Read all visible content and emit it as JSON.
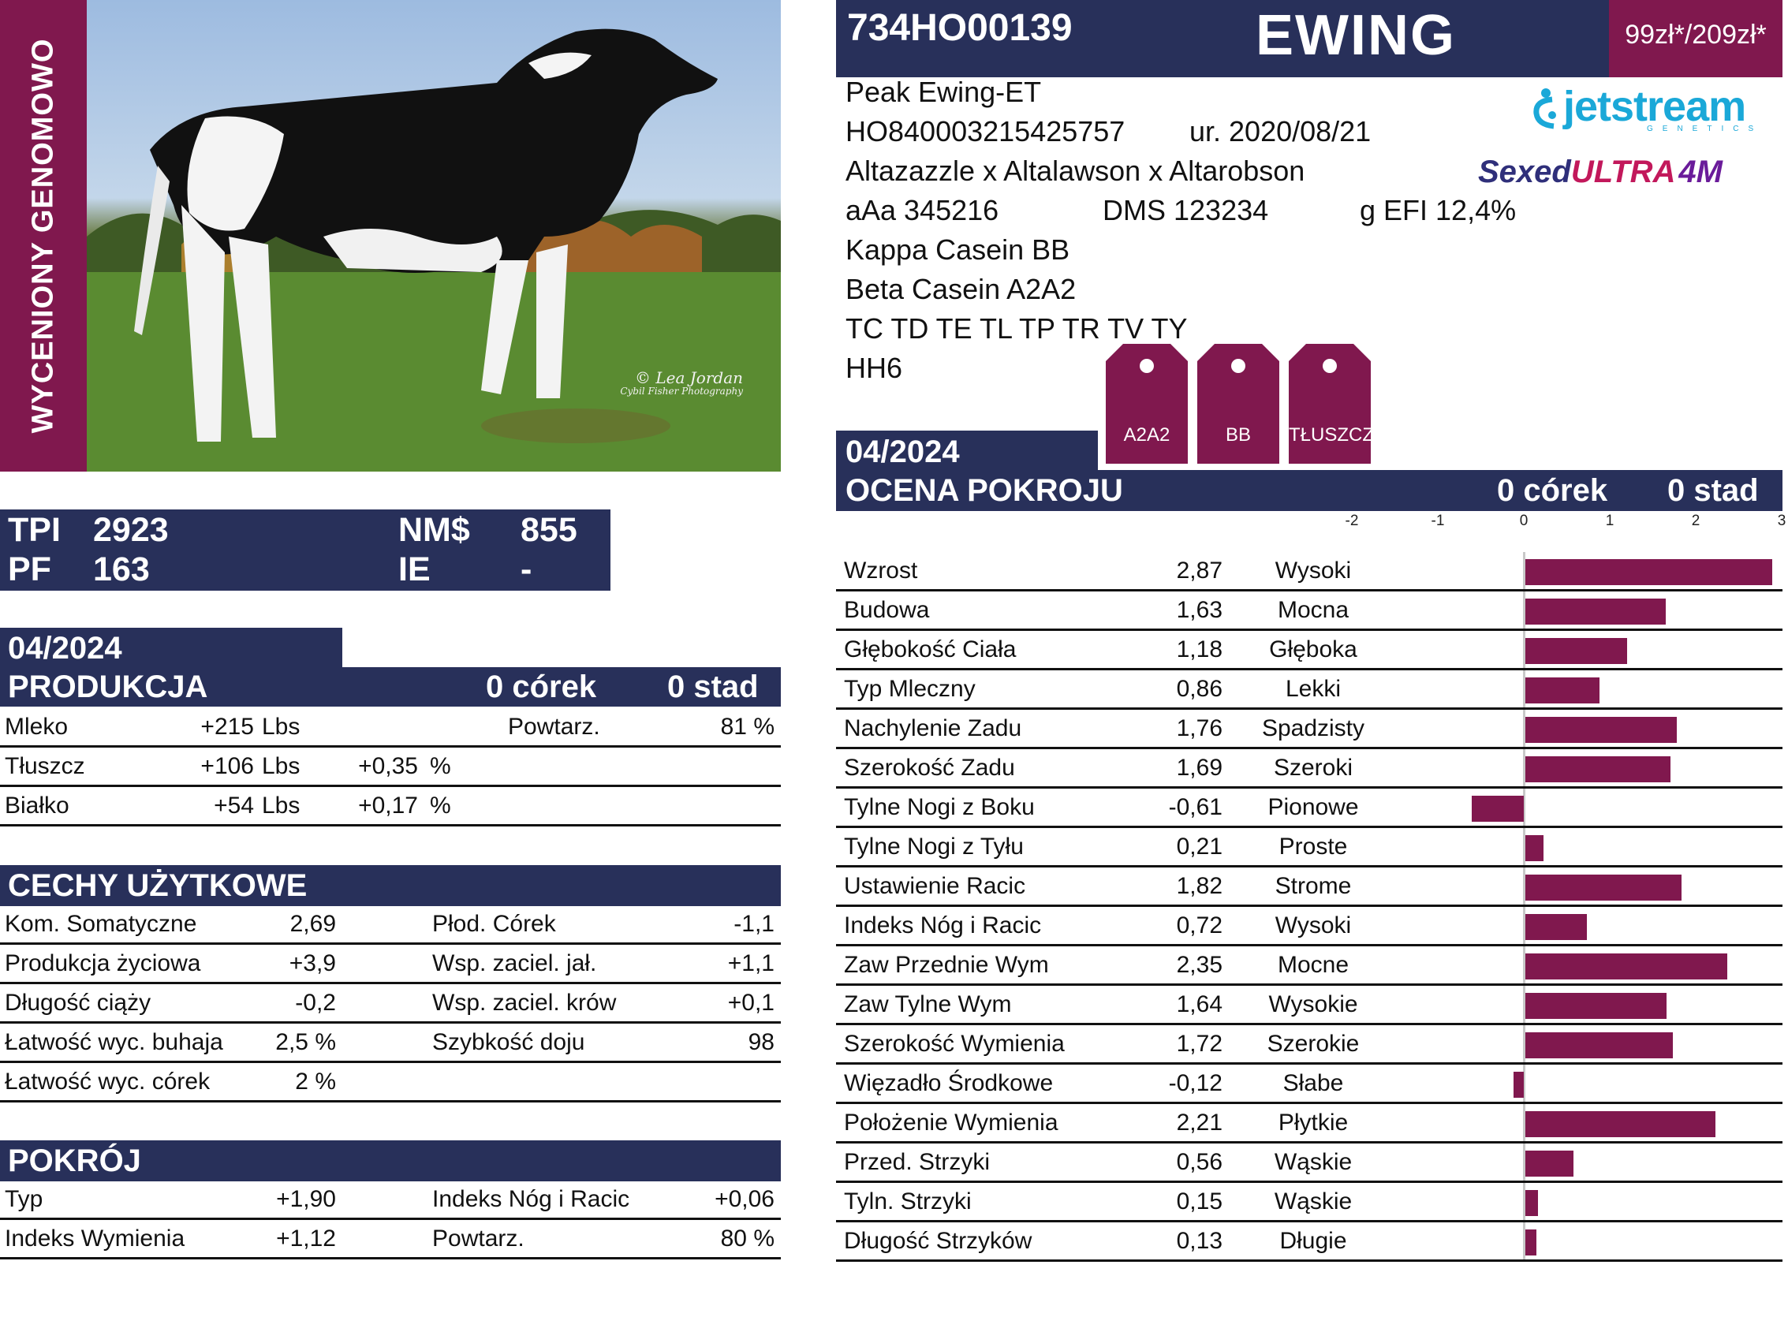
{
  "side_label": "WYCENIONY GENOMOWO",
  "photo": {
    "credit_line1": "© Lea Jordan",
    "credit_line2": "Cybil Fisher Photography"
  },
  "tpi_block": {
    "tpi_label": "TPI",
    "tpi_value": "2923",
    "nm_label": "NM$",
    "nm_value": "855",
    "pf_label": "PF",
    "pf_value": "163",
    "ie_label": "IE",
    "ie_value": "-"
  },
  "production": {
    "date": "04/2024",
    "title": "PRODUKCJA",
    "daughters": "0  córek",
    "herds": "0  stad",
    "rows": [
      {
        "name": "Mleko",
        "value": "+215",
        "unit": "Lbs",
        "pct": "",
        "pct_unit": "",
        "extra_label": "Powtarz.",
        "extra_value": "81 %"
      },
      {
        "name": "Tłuszcz",
        "value": "+106",
        "unit": "Lbs",
        "pct": "+0,35",
        "pct_unit": "%",
        "extra_label": "",
        "extra_value": ""
      },
      {
        "name": "Białko",
        "value": "+54",
        "unit": "Lbs",
        "pct": "+0,17",
        "pct_unit": "%",
        "extra_label": "",
        "extra_value": ""
      }
    ]
  },
  "functional": {
    "title": "CECHY UŻYTKOWE",
    "rows": [
      {
        "l_name": "Kom. Somatyczne",
        "l_value": "2,69",
        "r_name": "Płod. Córek",
        "r_value": "-1,1"
      },
      {
        "l_name": "Produkcja życiowa",
        "l_value": "+3,9",
        "r_name": "Wsp. zaciel. jał.",
        "r_value": "+1,1"
      },
      {
        "l_name": "Długość ciąży",
        "l_value": "-0,2",
        "r_name": "Wsp. zaciel. krów",
        "r_value": "+0,1"
      },
      {
        "l_name": "Łatwość wyc. buhaja",
        "l_value": "2,5 %",
        "r_name": "Szybkość doju",
        "r_value": "98"
      },
      {
        "l_name": "Łatwość wyc. córek",
        "l_value": "2 %",
        "r_name": "",
        "r_value": ""
      }
    ]
  },
  "type_section": {
    "title": "POKRÓJ",
    "rows": [
      {
        "l_name": "Typ",
        "l_value": "+1,90",
        "r_name": "Indeks Nóg i Racic",
        "r_value": "+0,06"
      },
      {
        "l_name": "Indeks Wymienia",
        "l_value": "+1,12",
        "r_name": "Powtarz.",
        "r_value": "80 %"
      }
    ]
  },
  "header": {
    "code": "734HO00139",
    "name": "EWING",
    "price": "99zł*/209zł*"
  },
  "info": {
    "full_name": "Peak Ewing-ET",
    "reg_number": "HO840003215425757",
    "born": "ur. 2020/08/21",
    "pedigree": "Altazazzle x Altalawson x Altarobson",
    "aaa": "aAa 345216",
    "dms": "DMS 123234",
    "efi": "g EFI 12,4%",
    "kappa": "Kappa Casein BB",
    "beta": "Beta Casein A2A2",
    "haplotypes": "TC TD TE TL TP TR TV TY",
    "hh": "HH6"
  },
  "logos": {
    "jetstream": "jetstream",
    "jetstream_sub": "GENETICS",
    "sexed": "Sexed",
    "ultra": "ULTRA",
    "fourm": "4M"
  },
  "tags": [
    "A2A2",
    "BB",
    "TŁUSZCZ"
  ],
  "conformation": {
    "date": "04/2024",
    "title": "OCENA POKROJU",
    "daughters": "0  córek",
    "herds": "0  stad"
  },
  "chart_data": {
    "type": "bar",
    "orientation": "horizontal",
    "xlim": [
      -2,
      3
    ],
    "ticks": [
      "-2",
      "-1",
      "0",
      "1",
      "2",
      "3"
    ],
    "bar_color": "#80184e",
    "categories": [
      "Wzrost",
      "Budowa",
      "Głębokość Ciała",
      "Typ Mleczny",
      "Nachylenie Zadu",
      "Szerokość Zadu",
      "Tylne Nogi z Boku",
      "Tylne Nogi z Tyłu",
      "Ustawienie Racic",
      "Indeks Nóg i Racic",
      "Zaw Przednie Wym",
      "Zaw Tylne Wym",
      "Szerokość Wymienia",
      "Więzadło Środkowe",
      "Położenie Wymienia",
      "Przed. Strzyki",
      "Tyln. Strzyki",
      "Długość Strzyków"
    ],
    "values": [
      2.87,
      1.63,
      1.18,
      0.86,
      1.76,
      1.69,
      -0.61,
      0.21,
      1.82,
      0.72,
      2.35,
      1.64,
      1.72,
      -0.12,
      2.21,
      0.56,
      0.15,
      0.13
    ],
    "value_labels": [
      "2,87",
      "1,63",
      "1,18",
      "0,86",
      "1,76",
      "1,69",
      "-0,61",
      "0,21",
      "1,82",
      "0,72",
      "2,35",
      "1,64",
      "1,72",
      "-0,12",
      "2,21",
      "0,56",
      "0,15",
      "0,13"
    ],
    "descriptors": [
      "Wysoki",
      "Mocna",
      "Głęboka",
      "Lekki",
      "Spadzisty",
      "Szeroki",
      "Pionowe",
      "Proste",
      "Strome",
      "Wysoki",
      "Mocne",
      "Wysokie",
      "Szerokie",
      "Słabe",
      "Płytkie",
      "Wąskie",
      "Wąskie",
      "Długie"
    ]
  }
}
